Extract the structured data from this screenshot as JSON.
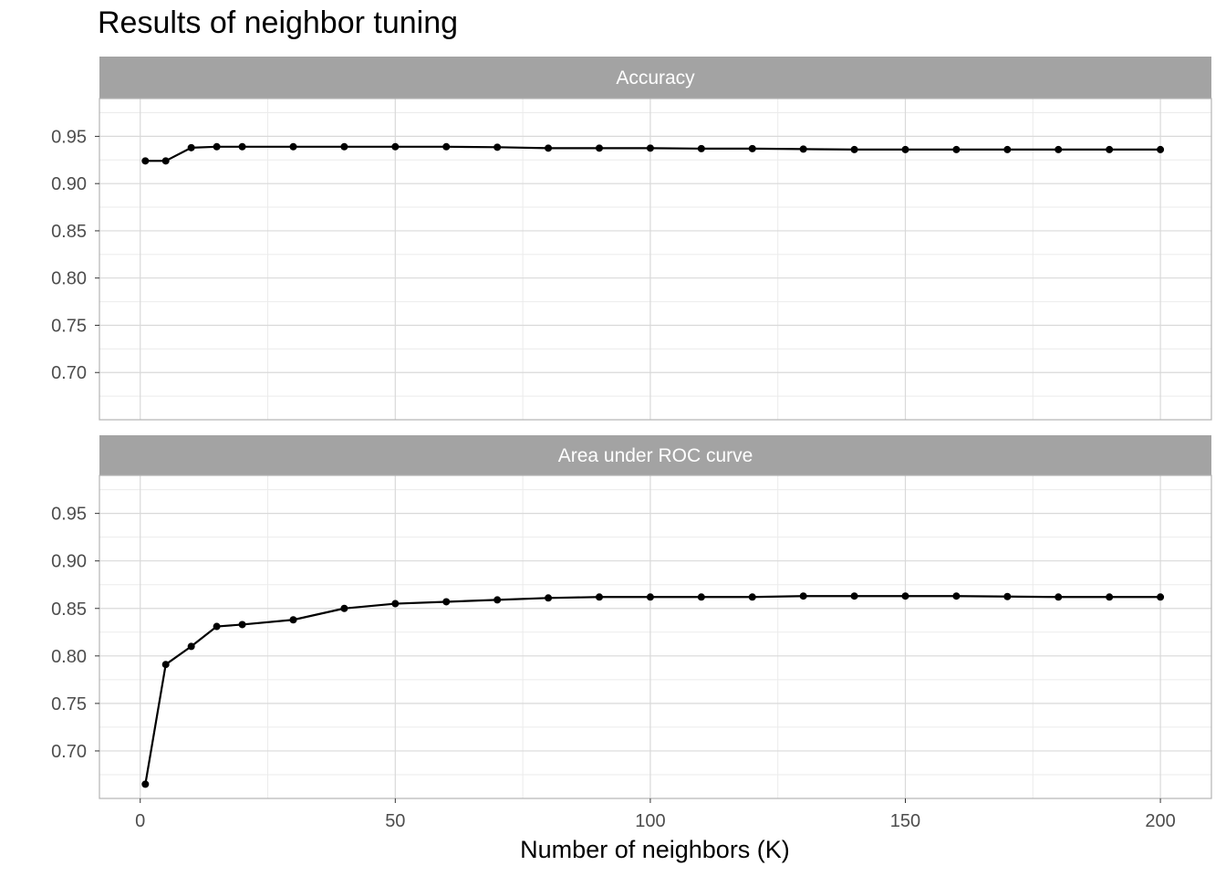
{
  "title": "Results of neighbor tuning",
  "chart_data": {
    "type": "line",
    "title": "Results of neighbor tuning",
    "xlabel": "Number of neighbors (K)",
    "ylabel": "",
    "xlim": [
      -8,
      210
    ],
    "ylim": [
      0.65,
      0.99
    ],
    "x_ticks": [
      0,
      50,
      100,
      150,
      200
    ],
    "y_ticks": [
      0.7,
      0.75,
      0.8,
      0.85,
      0.9,
      0.95
    ],
    "grid": true,
    "facet_layout": "stacked vertically, shared x axis",
    "colors": {
      "line": "#000000",
      "strip_bg": "#a3a3a3",
      "strip_text": "#ffffff",
      "grid_major": "#d9d9d9",
      "grid_minor": "#ebebeb",
      "panel_border": "#b3b3b3"
    },
    "x": [
      1,
      5,
      10,
      15,
      20,
      30,
      40,
      50,
      60,
      70,
      80,
      90,
      100,
      110,
      120,
      130,
      140,
      150,
      160,
      170,
      180,
      190,
      200
    ],
    "panels": [
      {
        "label": "Accuracy",
        "values": [
          0.924,
          0.924,
          0.938,
          0.939,
          0.939,
          0.939,
          0.939,
          0.939,
          0.939,
          0.9385,
          0.9375,
          0.9375,
          0.9375,
          0.937,
          0.937,
          0.9365,
          0.936,
          0.936,
          0.936,
          0.936,
          0.936,
          0.936,
          0.936
        ]
      },
      {
        "label": "Area under ROC curve",
        "values": [
          0.665,
          0.791,
          0.81,
          0.831,
          0.833,
          0.838,
          0.85,
          0.855,
          0.857,
          0.859,
          0.861,
          0.862,
          0.862,
          0.862,
          0.862,
          0.863,
          0.863,
          0.863,
          0.863,
          0.8625,
          0.862,
          0.862,
          0.862
        ]
      }
    ]
  }
}
